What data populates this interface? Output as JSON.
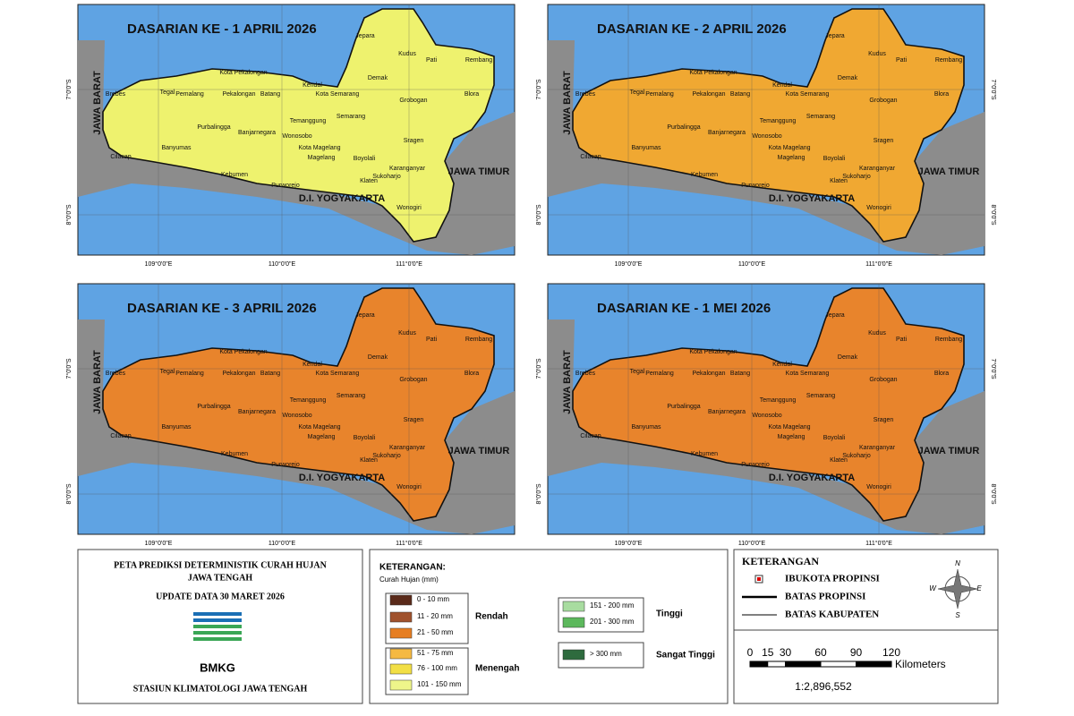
{
  "maps": [
    {
      "title": "DASARIAN KE - 1 APRIL 2026",
      "color": "#eef26e"
    },
    {
      "title": "DASARIAN KE - 2 APRIL 2026",
      "color": "#f0a832"
    },
    {
      "title": "DASARIAN KE - 3 APRIL 2026",
      "color": "#e8842c"
    },
    {
      "title": "DASARIAN KE - 1 MEI 2026",
      "color": "#e8842c"
    }
  ],
  "regions": [
    "Jepara",
    "Kudus",
    "Pati",
    "Rembang",
    "Demak",
    "Blora",
    "Grobogan",
    "Kendal",
    "Kota Semarang",
    "Semarang",
    "Batang",
    "Pekalongan",
    "Kota Pekalongan",
    "Pemalang",
    "Tegal",
    "Brebes",
    "Purbalingga",
    "Banjarnegara",
    "Wonosobo",
    "Temanggung",
    "Kota Magelang",
    "Magelang",
    "Boyolali",
    "Sragen",
    "Karanganyar",
    "Sukoharjo",
    "Klaten",
    "Wonogiri",
    "Purworejo",
    "Kebumen",
    "Banyumas",
    "Cilacap"
  ],
  "neighbors": [
    "JAWA BARAT",
    "JAWA TIMUR",
    "D.I. YOGYAKARTA"
  ],
  "lat_labels": [
    "7°0'0\"S",
    "8°0'0\"S"
  ],
  "lon_labels": [
    "109°0'0\"E",
    "110°0'0\"E",
    "111°0'0\"E"
  ],
  "info": {
    "title_lines": [
      "PETA PREDIKSI DETERMINISTIK CURAH HUJAN",
      "JAWA TENGAH"
    ],
    "update": "UPDATE DATA 30 MARET 2026",
    "logo": "BMKG",
    "station": "STASIUN KLIMATOLOGI JAWA TENGAH"
  },
  "legend": {
    "title": "KETERANGAN:",
    "subtitle": "Curah Hujan (mm)",
    "items": [
      {
        "label": "0 - 10 mm",
        "color": "#5a2a1a"
      },
      {
        "label": "11 - 20 mm",
        "color": "#a0522d"
      },
      {
        "label": "21 - 50 mm",
        "color": "#e67e22"
      },
      {
        "label": "51 - 75 mm",
        "color": "#f5b942"
      },
      {
        "label": "76 - 100 mm",
        "color": "#f2df45"
      },
      {
        "label": "101 - 150 mm",
        "color": "#eef58a"
      },
      {
        "label": "151 - 200 mm",
        "color": "#a8dca0"
      },
      {
        "label": "201 - 300 mm",
        "color": "#5cb85c"
      },
      {
        "label": "> 300 mm",
        "color": "#2e6b3e"
      }
    ],
    "groups": [
      "Rendah",
      "Menengah",
      "Tinggi",
      "Sangat Tinggi"
    ]
  },
  "key": {
    "title": "KETERANGAN",
    "items": [
      "IBUKOTA PROPINSI",
      "BATAS PROPINSI",
      "BATAS KABUPATEN"
    ],
    "compass": [
      "N",
      "E",
      "S",
      "W"
    ],
    "scale_ticks": [
      0,
      15,
      30,
      60,
      90,
      120
    ],
    "scale_unit": "Kilometers",
    "scale_ratio": "1:2,896,552"
  }
}
